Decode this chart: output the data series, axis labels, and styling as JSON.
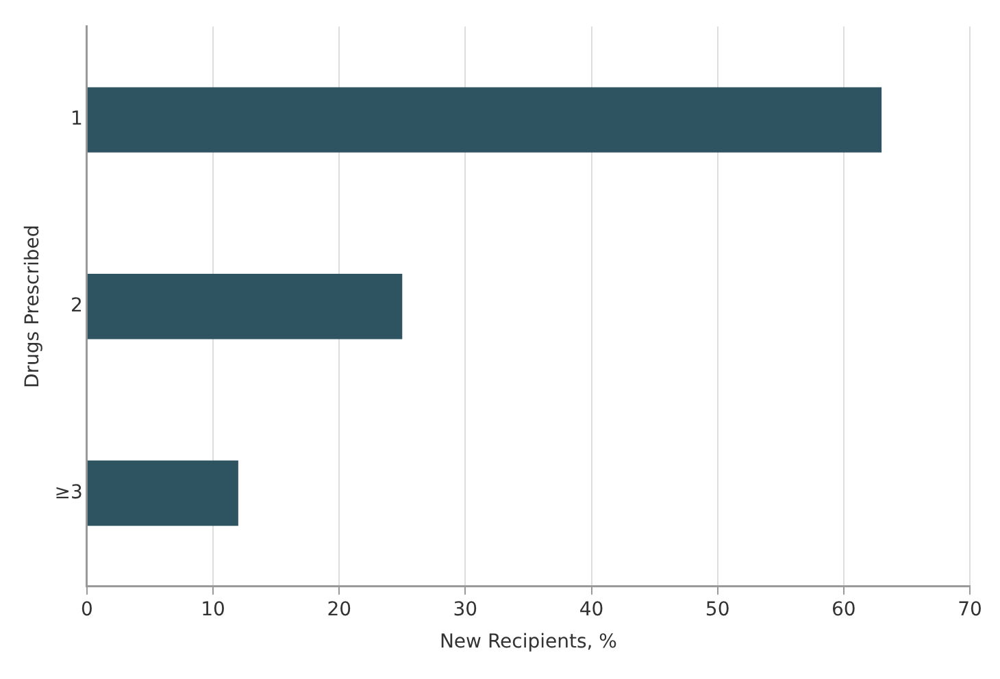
{
  "chart_data": {
    "type": "bar",
    "orientation": "horizontal",
    "xlabel": "New Recipients, %",
    "ylabel": "Drugs Prescribed",
    "categories": [
      "1",
      "2",
      "≥3"
    ],
    "values": [
      63,
      25,
      12
    ],
    "color": "#2e5361",
    "xlim": [
      0,
      70
    ],
    "xticks": [
      0,
      10,
      20,
      30,
      40,
      50,
      60,
      70
    ],
    "grid": "x",
    "legend": false
  }
}
